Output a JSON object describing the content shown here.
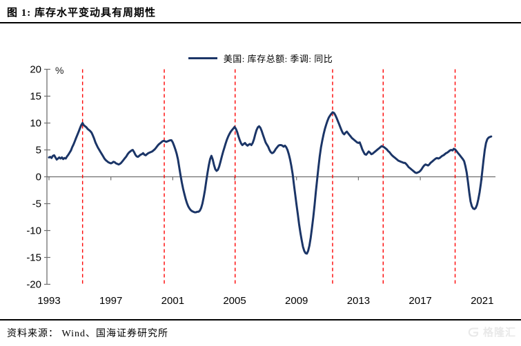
{
  "header": {
    "title": "图 1:  库存水平变动具有周期性"
  },
  "legend": {
    "label": "美国: 库存总额: 季调: 同比"
  },
  "footer": {
    "source": "资料来源： Wind、国海证券研究所",
    "watermark": "格隆汇"
  },
  "chart_data": {
    "type": "line",
    "title": "库存水平变动具有周期性",
    "series_name": "美国: 库存总额: 季调: 同比",
    "unit_label": "%",
    "xlabel": "",
    "ylabel": "%",
    "ylim": [
      -20,
      20
    ],
    "xlim": [
      1993,
      2021.9
    ],
    "grid": false,
    "legend_position": "top-center",
    "y_ticks": [
      20,
      15,
      10,
      5,
      0,
      -5,
      -10,
      -15,
      -20
    ],
    "x_ticks": [
      1993,
      1997,
      2001,
      2005,
      2009,
      2013,
      2017,
      2021
    ],
    "line_color": "#1b3567",
    "peak_line_color": "#fe0000",
    "axis_color": "#6e6e6e",
    "cycle_peak_lines": [
      1995.17,
      2000.45,
      2005.03,
      2011.33,
      2014.6,
      2019.25
    ],
    "series_start_year": 1993.0,
    "series_step_years": 0.08333,
    "values": [
      3.6,
      3.7,
      3.5,
      3.9,
      4.0,
      3.6,
      3.2,
      3.4,
      3.6,
      3.4,
      3.6,
      3.3,
      3.5,
      3.4,
      3.8,
      4.1,
      4.5,
      4.9,
      5.5,
      6.0,
      6.6,
      7.2,
      7.8,
      8.4,
      9.0,
      9.6,
      10.0,
      9.6,
      9.4,
      9.2,
      8.9,
      8.7,
      8.5,
      8.2,
      7.7,
      7.1,
      6.4,
      5.9,
      5.4,
      5.0,
      4.6,
      4.2,
      3.8,
      3.4,
      3.1,
      2.9,
      2.7,
      2.6,
      2.5,
      2.6,
      2.8,
      2.7,
      2.5,
      2.4,
      2.3,
      2.4,
      2.6,
      2.9,
      3.2,
      3.5,
      3.8,
      4.2,
      4.5,
      4.7,
      4.9,
      5.0,
      4.6,
      4.1,
      3.8,
      3.7,
      3.9,
      4.1,
      4.2,
      4.4,
      4.1,
      4.0,
      4.2,
      4.4,
      4.5,
      4.6,
      4.7,
      4.9,
      5.1,
      5.4,
      5.7,
      6.0,
      6.2,
      6.4,
      6.6,
      6.7,
      6.6,
      6.5,
      6.6,
      6.7,
      6.8,
      6.8,
      6.4,
      5.8,
      5.1,
      4.3,
      3.3,
      1.8,
      0.3,
      -1.0,
      -2.2,
      -3.2,
      -4.1,
      -4.9,
      -5.5,
      -5.9,
      -6.2,
      -6.4,
      -6.5,
      -6.6,
      -6.6,
      -6.5,
      -6.5,
      -6.3,
      -5.8,
      -5.0,
      -3.8,
      -2.4,
      -0.8,
      0.8,
      2.2,
      3.3,
      3.9,
      3.2,
      2.2,
      1.4,
      1.1,
      1.3,
      1.9,
      2.8,
      3.7,
      4.6,
      5.4,
      6.2,
      6.9,
      7.5,
      8.0,
      8.4,
      8.7,
      9.0,
      9.3,
      8.9,
      8.3,
      7.5,
      6.8,
      6.2,
      5.9,
      6.1,
      6.3,
      6.0,
      5.8,
      6.0,
      6.1,
      5.9,
      6.3,
      7.0,
      7.9,
      8.7,
      9.2,
      9.4,
      9.1,
      8.5,
      7.8,
      7.1,
      6.4,
      6.0,
      5.6,
      5.0,
      4.6,
      4.4,
      4.5,
      4.8,
      5.2,
      5.5,
      5.8,
      5.9,
      5.9,
      5.8,
      5.6,
      5.8,
      5.5,
      5.0,
      4.2,
      3.2,
      2.0,
      0.5,
      -1.5,
      -3.3,
      -5.2,
      -7.0,
      -8.8,
      -10.4,
      -11.8,
      -13.0,
      -13.8,
      -14.2,
      -14.3,
      -13.8,
      -12.8,
      -11.3,
      -9.5,
      -7.5,
      -5.2,
      -2.8,
      -0.5,
      1.8,
      3.8,
      5.5,
      6.8,
      7.9,
      8.9,
      9.7,
      10.4,
      11.0,
      11.4,
      11.7,
      12.0,
      11.9,
      11.5,
      11.0,
      10.4,
      9.8,
      9.2,
      8.6,
      8.1,
      7.9,
      8.2,
      8.4,
      8.1,
      7.8,
      7.5,
      7.2,
      7.0,
      6.8,
      6.6,
      6.4,
      6.3,
      6.4,
      5.8,
      5.1,
      4.6,
      4.2,
      4.1,
      4.4,
      4.7,
      4.5,
      4.2,
      4.3,
      4.5,
      4.7,
      4.9,
      5.1,
      5.3,
      5.5,
      5.7,
      5.6,
      5.5,
      5.3,
      5.1,
      4.8,
      4.6,
      4.3,
      4.0,
      3.8,
      3.6,
      3.4,
      3.2,
      3.0,
      2.9,
      2.8,
      2.7,
      2.6,
      2.6,
      2.4,
      2.1,
      1.8,
      1.6,
      1.4,
      1.2,
      1.0,
      0.8,
      0.7,
      0.8,
      0.9,
      1.1,
      1.4,
      1.8,
      2.1,
      2.3,
      2.2,
      2.1,
      2.3,
      2.6,
      2.8,
      3.0,
      3.2,
      3.4,
      3.5,
      3.4,
      3.5,
      3.7,
      3.9,
      4.0,
      4.2,
      4.4,
      4.5,
      4.7,
      4.9,
      5.0,
      4.9,
      5.2,
      5.1,
      4.8,
      4.5,
      4.2,
      3.9,
      3.6,
      3.3,
      2.9,
      2.0,
      0.8,
      -1.0,
      -3.0,
      -4.6,
      -5.5,
      -5.9,
      -6.0,
      -5.8,
      -5.2,
      -4.2,
      -2.9,
      -1.2,
      0.8,
      3.0,
      5.0,
      6.3,
      7.0,
      7.3,
      7.4,
      7.5
    ]
  }
}
